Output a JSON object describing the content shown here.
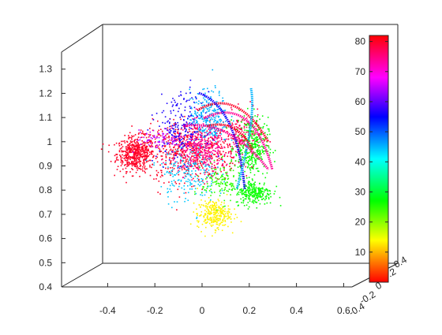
{
  "chart_data": {
    "type": "scatter",
    "dimensions": 3,
    "title": "",
    "xlabel": "",
    "ylabel": "",
    "zlabel": "",
    "grid": false,
    "xlim": [
      -0.6,
      0.6
    ],
    "ylim": [
      -0.4,
      0.4
    ],
    "zlim": [
      0.4,
      1.35
    ],
    "x_ticks": [
      "-0.4",
      "-0.2",
      "0",
      "0.2",
      "0.4",
      "0.6"
    ],
    "y_ticks": [
      "-0.4",
      "-0.2",
      "0",
      "0.2",
      "0.4"
    ],
    "z_ticks": [
      "0.4",
      "0.5",
      "0.6",
      "0.7",
      "0.8",
      "0.9",
      "1",
      "1.1",
      "1.2",
      "1.3"
    ],
    "colorbar": {
      "colormap": "hsv",
      "range": [
        0,
        82
      ],
      "ticks": [
        "10",
        "20",
        "30",
        "40",
        "50",
        "60",
        "70",
        "80"
      ],
      "placement": "right-inside"
    },
    "clusters": [
      {
        "c": 80,
        "x": -0.28,
        "z": 0.95,
        "sx": 0.04,
        "sz": 0.035,
        "n": 500
      },
      {
        "c": 80,
        "x": -0.05,
        "z": 0.96,
        "sx": 0.1,
        "sz": 0.06,
        "n": 650
      },
      {
        "c": 78,
        "x": 0.17,
        "z": 1.02,
        "sx": 0.04,
        "sz": 0.05,
        "n": 180
      },
      {
        "c": 27,
        "x": 0.21,
        "z": 0.98,
        "sx": 0.035,
        "sz": 0.06,
        "n": 350
      },
      {
        "c": 27,
        "x": 0.22,
        "z": 0.79,
        "sx": 0.04,
        "sz": 0.025,
        "n": 260
      },
      {
        "c": 13,
        "x": 0.05,
        "z": 0.7,
        "sx": 0.035,
        "sz": 0.03,
        "n": 280
      },
      {
        "c": 45,
        "x": 0.03,
        "z": 1.1,
        "sx": 0.04,
        "sz": 0.055,
        "n": 300
      },
      {
        "c": 44,
        "x": -0.06,
        "z": 0.87,
        "sx": 0.06,
        "sz": 0.06,
        "n": 200
      },
      {
        "c": 74,
        "x": 0.0,
        "z": 0.97,
        "sx": 0.06,
        "sz": 0.05,
        "n": 320
      },
      {
        "c": 56,
        "x": -0.09,
        "z": 1.06,
        "sx": 0.05,
        "sz": 0.07,
        "n": 200
      },
      {
        "c": 65,
        "x": -0.18,
        "z": 1.01,
        "sx": 0.05,
        "sz": 0.02,
        "n": 80
      },
      {
        "c": 25,
        "x": 0.08,
        "z": 0.83,
        "sx": 0.04,
        "sz": 0.04,
        "n": 120
      }
    ]
  }
}
